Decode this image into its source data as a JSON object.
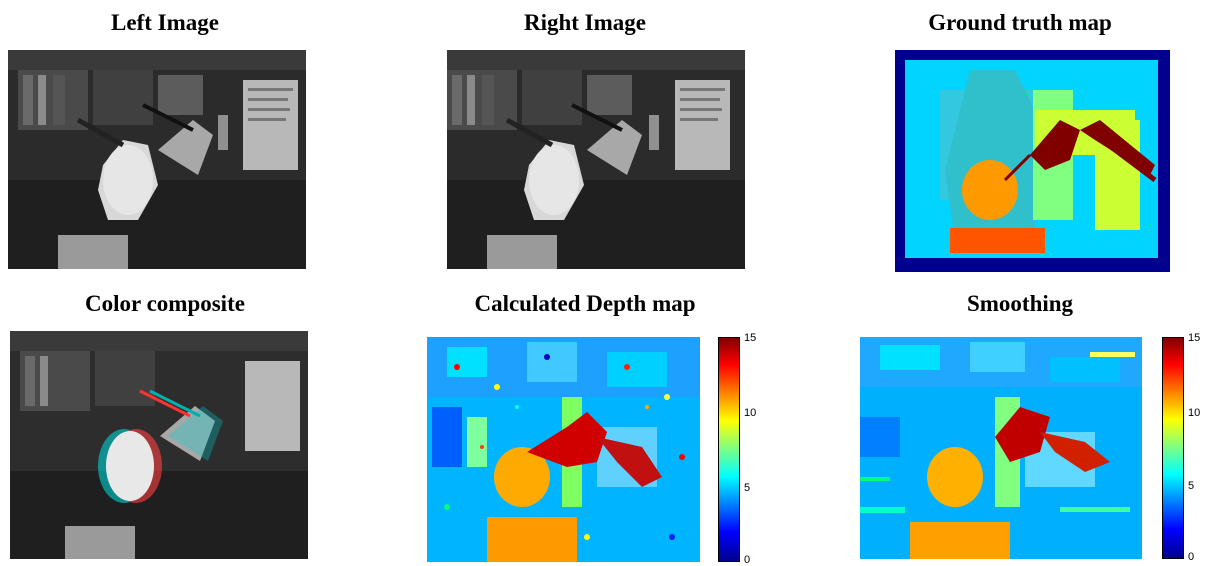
{
  "panels": [
    {
      "title": "Left Image",
      "kind": "grayscale-photo"
    },
    {
      "title": "Right Image",
      "kind": "grayscale-photo"
    },
    {
      "title": "Ground truth map",
      "kind": "ground-truth"
    },
    {
      "title": "Color composite",
      "kind": "anaglyph-photo"
    },
    {
      "title": "Calculated Depth map",
      "kind": "depth-map-noisy"
    },
    {
      "title": "Smoothing",
      "kind": "depth-map-smooth"
    }
  ],
  "colorbars": [
    {
      "min": 0,
      "max": 15,
      "ticks": [
        "15",
        "10",
        "5",
        "0"
      ],
      "colormap": "jet"
    },
    {
      "min": 0,
      "max": 15,
      "ticks": [
        "15",
        "10",
        "5",
        "0"
      ],
      "colormap": "jet"
    }
  ],
  "colors": {
    "jet_dark_blue": "#00008f",
    "jet_blue": "#0000ff",
    "jet_cyan": "#00ffff",
    "jet_yellow": "#ffff00",
    "jet_red": "#ff0000",
    "jet_dark_red": "#800000"
  }
}
